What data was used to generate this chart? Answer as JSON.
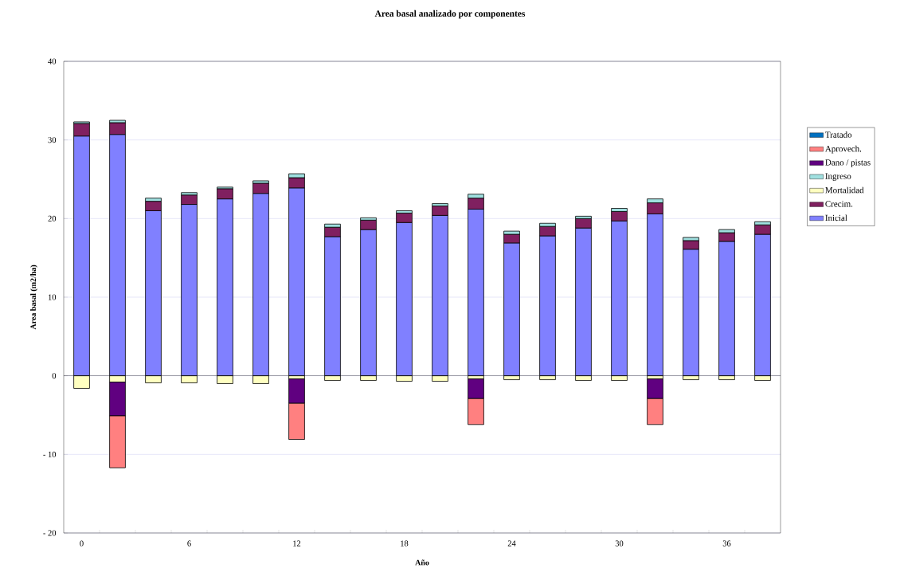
{
  "chart_data": {
    "type": "bar",
    "stacked": true,
    "title": "Area basal analizado por componentes",
    "xlabel": "Año",
    "ylabel": "Area basal (m2/ha)",
    "categories": [
      "0",
      null,
      null,
      "6",
      null,
      null,
      "12",
      null,
      null,
      "18",
      null,
      null,
      "24",
      null,
      null,
      "30",
      null,
      null,
      "36",
      null
    ],
    "ylim": [
      -20,
      40
    ],
    "yticks": [
      {
        "value": -20,
        "label": "- 20"
      },
      {
        "value": -10,
        "label": "- 10"
      },
      0,
      10,
      20,
      30,
      40
    ],
    "grid": "y",
    "legend": "right",
    "series": [
      {
        "name": "Inicial",
        "color": "#8080ff",
        "values": [
          30.5,
          30.7,
          21.0,
          21.8,
          22.5,
          23.2,
          23.9,
          17.7,
          18.6,
          19.5,
          20.4,
          21.2,
          16.9,
          17.8,
          18.8,
          19.7,
          20.6,
          16.1,
          17.1,
          18.0
        ]
      },
      {
        "name": "Crecim.",
        "color": "#802060",
        "values": [
          1.6,
          1.5,
          1.2,
          1.2,
          1.3,
          1.3,
          1.3,
          1.2,
          1.2,
          1.2,
          1.2,
          1.4,
          1.1,
          1.2,
          1.2,
          1.2,
          1.4,
          1.1,
          1.1,
          1.2
        ]
      },
      {
        "name": "Mortalidad",
        "color": "#ffffc0",
        "values": [
          -1.6,
          -0.8,
          -0.9,
          -0.9,
          -1.0,
          -1.0,
          -0.4,
          -0.6,
          -0.6,
          -0.7,
          -0.7,
          -0.4,
          -0.5,
          -0.5,
          -0.6,
          -0.6,
          -0.4,
          -0.5,
          -0.5,
          -0.6
        ]
      },
      {
        "name": "Ingreso",
        "color": "#a0e0e0",
        "values": [
          0.2,
          0.3,
          0.4,
          0.3,
          0.2,
          0.3,
          0.5,
          0.4,
          0.3,
          0.3,
          0.3,
          0.5,
          0.4,
          0.4,
          0.3,
          0.4,
          0.5,
          0.4,
          0.4,
          0.4
        ]
      },
      {
        "name": "Dano / pistas",
        "color": "#600080",
        "values": [
          null,
          -4.3,
          null,
          null,
          null,
          null,
          -3.1,
          null,
          null,
          null,
          null,
          -2.5,
          null,
          null,
          null,
          null,
          -2.5,
          null,
          null,
          null
        ]
      },
      {
        "name": "Aprovech.",
        "color": "#ff8080",
        "values": [
          null,
          -6.6,
          null,
          null,
          null,
          null,
          -4.6,
          null,
          null,
          null,
          null,
          -3.3,
          null,
          null,
          null,
          null,
          -3.3,
          null,
          null,
          null
        ]
      },
      {
        "name": "Tratado",
        "color": "#0070c0",
        "values": [
          null,
          null,
          null,
          null,
          null,
          null,
          null,
          null,
          null,
          null,
          null,
          null,
          null,
          null,
          null,
          null,
          null,
          null,
          null,
          null
        ]
      }
    ]
  }
}
